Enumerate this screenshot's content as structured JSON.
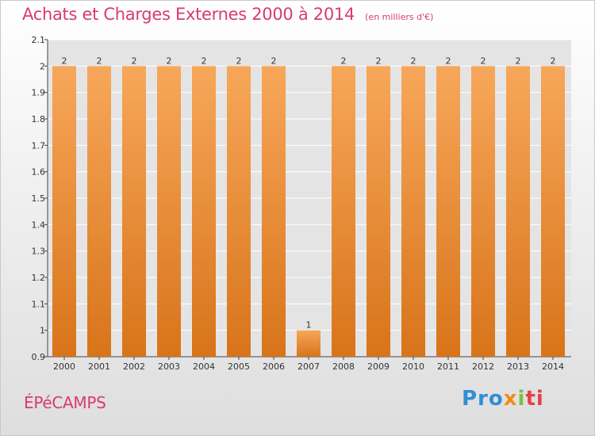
{
  "header": {
    "title": "Achats et Charges Externes 2000 à 2014",
    "subtitle": "(en milliers d'€)"
  },
  "footer": {
    "commune": "ÉPéCAMPS",
    "logo_text": [
      "Pro",
      "x",
      "i",
      "ti"
    ]
  },
  "colors": {
    "bar": "#f28e2b",
    "bar_light": "#f7a75a",
    "bar_dark": "#d8741a",
    "title": "#d93a72"
  },
  "chart_data": {
    "type": "bar",
    "title": "Achats et Charges Externes 2000 à 2014",
    "subtitle": "(en milliers d'€)",
    "categories": [
      "2000",
      "2001",
      "2002",
      "2003",
      "2004",
      "2005",
      "2006",
      "2007",
      "2008",
      "2009",
      "2010",
      "2011",
      "2012",
      "2013",
      "2014"
    ],
    "values": [
      2,
      2,
      2,
      2,
      2,
      2,
      2,
      1,
      2,
      2,
      2,
      2,
      2,
      2,
      2
    ],
    "data_labels": [
      "2",
      "2",
      "2",
      "2",
      "2",
      "2",
      "2",
      "1",
      "2",
      "2",
      "2",
      "2",
      "2",
      "2",
      "2"
    ],
    "ylim": [
      0.9,
      2.1
    ],
    "yticks": [
      0.9,
      1,
      1.1,
      1.2,
      1.3,
      1.4,
      1.5,
      1.6,
      1.7,
      1.8,
      1.9,
      2,
      2.1
    ],
    "ytick_labels": [
      "0.9",
      "1",
      "1.1",
      "1.2",
      "1.3",
      "1.4",
      "1.5",
      "1.6",
      "1.7",
      "1.8",
      "1.9",
      "2",
      "2.1"
    ],
    "grid": true
  }
}
